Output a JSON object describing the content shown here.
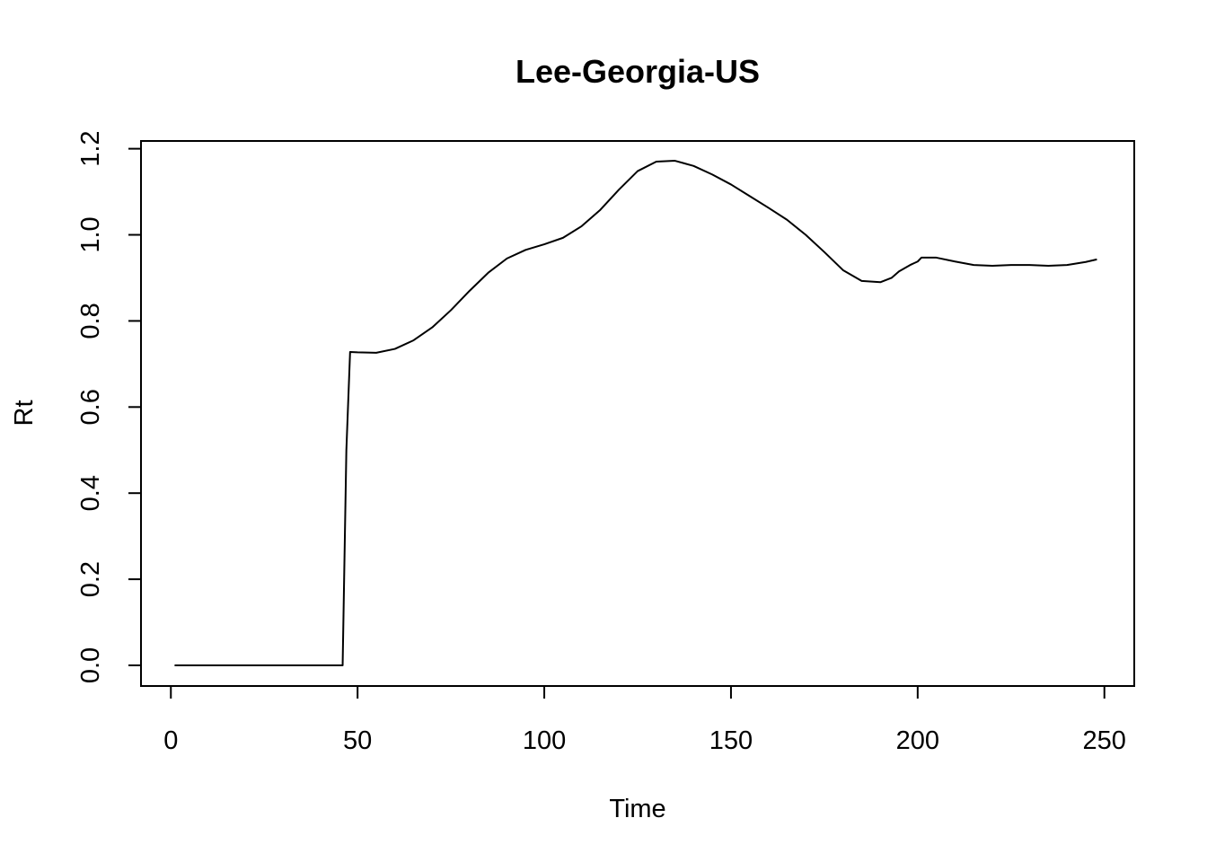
{
  "chart_data": {
    "type": "line",
    "title": "Lee-Georgia-US",
    "xlabel": "Time",
    "ylabel": "Rt",
    "xlim": [
      -8,
      258
    ],
    "ylim": [
      -0.048,
      1.218
    ],
    "x_ticks": [
      0,
      50,
      100,
      150,
      200,
      250
    ],
    "x_tick_labels": [
      "0",
      "50",
      "100",
      "150",
      "200",
      "250"
    ],
    "y_ticks": [
      0.0,
      0.2,
      0.4,
      0.6,
      0.8,
      1.0,
      1.2
    ],
    "y_tick_labels": [
      "0.0",
      "0.2",
      "0.4",
      "0.6",
      "0.8",
      "1.0",
      "1.2"
    ],
    "grid": false,
    "legend": "none",
    "line_color": "#000000",
    "series": [
      {
        "x": [
          1,
          10,
          20,
          30,
          40,
          46,
          47,
          48,
          50,
          55,
          60,
          65,
          70,
          75,
          80,
          85,
          90,
          95,
          100,
          105,
          110,
          115,
          120,
          125,
          130,
          135,
          140,
          145,
          150,
          155,
          160,
          165,
          170,
          175,
          180,
          185,
          190,
          193,
          195,
          198,
          200,
          201,
          205,
          210,
          215,
          220,
          225,
          230,
          235,
          240,
          245,
          248
        ],
        "y": [
          0.0,
          0.0,
          0.0,
          0.0,
          0.0,
          0.0,
          0.5,
          0.728,
          0.727,
          0.726,
          0.735,
          0.755,
          0.785,
          0.825,
          0.87,
          0.912,
          0.945,
          0.965,
          0.978,
          0.993,
          1.02,
          1.058,
          1.105,
          1.148,
          1.17,
          1.172,
          1.16,
          1.14,
          1.117,
          1.09,
          1.063,
          1.035,
          1.0,
          0.96,
          0.918,
          0.893,
          0.89,
          0.9,
          0.915,
          0.93,
          0.938,
          0.947,
          0.947,
          0.938,
          0.93,
          0.928,
          0.93,
          0.93,
          0.928,
          0.93,
          0.937,
          0.943
        ]
      }
    ]
  }
}
